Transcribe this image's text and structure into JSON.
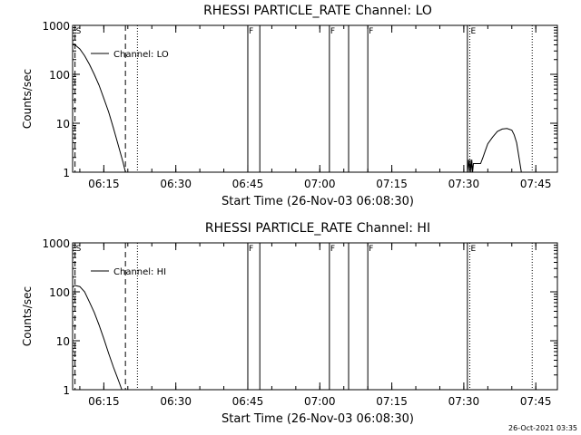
{
  "footer_timestamp": "26-Oct-2021 03:35",
  "colors": {
    "background": "#ffffff",
    "foreground": "#000000"
  },
  "chart_data": [
    {
      "type": "line",
      "title": "RHESSI PARTICLE_RATE Channel: LO",
      "xlabel": "Start Time (26-Nov-03 06:08:30)",
      "ylabel": "Counts/sec",
      "y_scale": "log",
      "xlim": [
        "06:08:30",
        "07:49:30"
      ],
      "ylim": [
        1,
        1000
      ],
      "x_ticks": [
        "06:15",
        "06:30",
        "06:45",
        "07:00",
        "07:15",
        "07:30",
        "07:45"
      ],
      "y_ticks": [
        "1",
        "10",
        "100",
        "1000"
      ],
      "grid": false,
      "legend": {
        "placement": "top-left",
        "entries": [
          "Channel: LO"
        ]
      },
      "series": [
        {
          "name": "Channel: LO",
          "points": [
            [
              "06:08:30",
              420
            ],
            [
              "06:09:00",
              400
            ],
            [
              "06:10:00",
              330
            ],
            [
              "06:11:00",
              240
            ],
            [
              "06:12:00",
              160
            ],
            [
              "06:13:00",
              100
            ],
            [
              "06:14:00",
              60
            ],
            [
              "06:15:00",
              32
            ],
            [
              "06:16:00",
              17
            ],
            [
              "06:17:00",
              8
            ],
            [
              "06:18:00",
              3.6
            ],
            [
              "06:19:00",
              1.6
            ],
            [
              "06:19:30",
              1
            ]
          ]
        },
        {
          "name": "",
          "points": [
            [
              "07:30:45",
              1
            ],
            [
              "07:31:00",
              1.8
            ],
            [
              "07:31:10",
              1
            ],
            [
              "07:31:20",
              1.8
            ],
            [
              "07:31:30",
              1
            ],
            [
              "07:31:40",
              1.8
            ],
            [
              "07:31:50",
              1
            ],
            [
              "07:32:00",
              1.5
            ],
            [
              "07:33:30",
              1.5
            ],
            [
              "07:34:00",
              2.0
            ],
            [
              "07:34:30",
              2.8
            ],
            [
              "07:35:00",
              3.8
            ],
            [
              "07:36:00",
              5.2
            ],
            [
              "07:37:00",
              6.8
            ],
            [
              "07:38:00",
              7.6
            ],
            [
              "07:39:00",
              7.8
            ],
            [
              "07:40:00",
              7.2
            ],
            [
              "07:40:30",
              5.8
            ],
            [
              "07:41:00",
              4.0
            ],
            [
              "07:41:30",
              2.0
            ],
            [
              "07:42:00",
              1
            ]
          ]
        }
      ],
      "markers": [
        {
          "time": "06:09:00",
          "style": "dashed",
          "label": "S"
        },
        {
          "time": "06:19:30",
          "style": "dashed",
          "label": ""
        },
        {
          "time": "06:22:00",
          "style": "dotted",
          "label": ""
        },
        {
          "time": "06:45:00",
          "style": "solid",
          "label": "F"
        },
        {
          "time": "06:47:30",
          "style": "solid",
          "label": ""
        },
        {
          "time": "07:02:00",
          "style": "solid",
          "label": "F"
        },
        {
          "time": "07:06:00",
          "style": "solid",
          "label": ""
        },
        {
          "time": "07:10:00",
          "style": "solid",
          "label": "F"
        },
        {
          "time": "07:30:45",
          "style": "solid",
          "label": ""
        },
        {
          "time": "07:31:15",
          "style": "dotted",
          "label": "E"
        },
        {
          "time": "07:44:15",
          "style": "dotted",
          "label": ""
        }
      ]
    },
    {
      "type": "line",
      "title": "RHESSI PARTICLE_RATE Channel: HI",
      "xlabel": "Start Time (26-Nov-03 06:08:30)",
      "ylabel": "Counts/sec",
      "y_scale": "log",
      "xlim": [
        "06:08:30",
        "07:49:30"
      ],
      "ylim": [
        1,
        1000
      ],
      "x_ticks": [
        "06:15",
        "06:30",
        "06:45",
        "07:00",
        "07:15",
        "07:30",
        "07:45"
      ],
      "y_ticks": [
        "1",
        "10",
        "100",
        "1000"
      ],
      "grid": false,
      "legend": {
        "placement": "top-left",
        "entries": [
          "Channel: HI"
        ]
      },
      "series": [
        {
          "name": "Channel: HI",
          "points": [
            [
              "06:08:30",
              125
            ],
            [
              "06:09:00",
              135
            ],
            [
              "06:10:00",
              128
            ],
            [
              "06:11:00",
              100
            ],
            [
              "06:12:00",
              62
            ],
            [
              "06:13:00",
              38
            ],
            [
              "06:14:00",
              21
            ],
            [
              "06:15:00",
              11
            ],
            [
              "06:16:00",
              5.5
            ],
            [
              "06:17:00",
              2.9
            ],
            [
              "06:18:00",
              1.6
            ],
            [
              "06:18:45",
              1
            ]
          ]
        }
      ],
      "markers": [
        {
          "time": "06:09:00",
          "style": "dashed",
          "label": "S"
        },
        {
          "time": "06:19:30",
          "style": "dashed",
          "label": ""
        },
        {
          "time": "06:22:00",
          "style": "dotted",
          "label": ""
        },
        {
          "time": "06:45:00",
          "style": "solid",
          "label": "F"
        },
        {
          "time": "06:47:30",
          "style": "solid",
          "label": ""
        },
        {
          "time": "07:02:00",
          "style": "solid",
          "label": "F"
        },
        {
          "time": "07:06:00",
          "style": "solid",
          "label": ""
        },
        {
          "time": "07:10:00",
          "style": "solid",
          "label": "F"
        },
        {
          "time": "07:30:45",
          "style": "solid",
          "label": ""
        },
        {
          "time": "07:31:15",
          "style": "dotted",
          "label": "E"
        },
        {
          "time": "07:44:15",
          "style": "dotted",
          "label": ""
        }
      ]
    }
  ]
}
